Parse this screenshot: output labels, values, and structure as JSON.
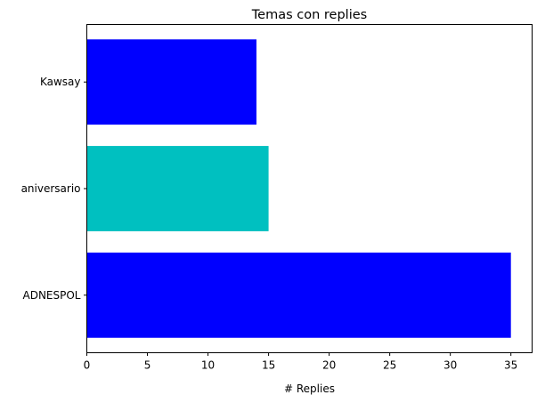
{
  "chart_data": {
    "type": "bar",
    "orientation": "horizontal",
    "title": "Temas con replies",
    "xlabel": "# Replies",
    "ylabel": "",
    "categories": [
      "ADNESPOL",
      "aniversario",
      "Kawsay"
    ],
    "values": [
      35,
      15,
      14
    ],
    "bar_colors": [
      "#0000ff",
      "#00c0c0",
      "#0000ff"
    ],
    "xlim": [
      0,
      36.75
    ],
    "xticks": [
      0,
      5,
      10,
      15,
      20,
      25,
      30,
      35
    ],
    "grid": false,
    "legend": "none"
  }
}
